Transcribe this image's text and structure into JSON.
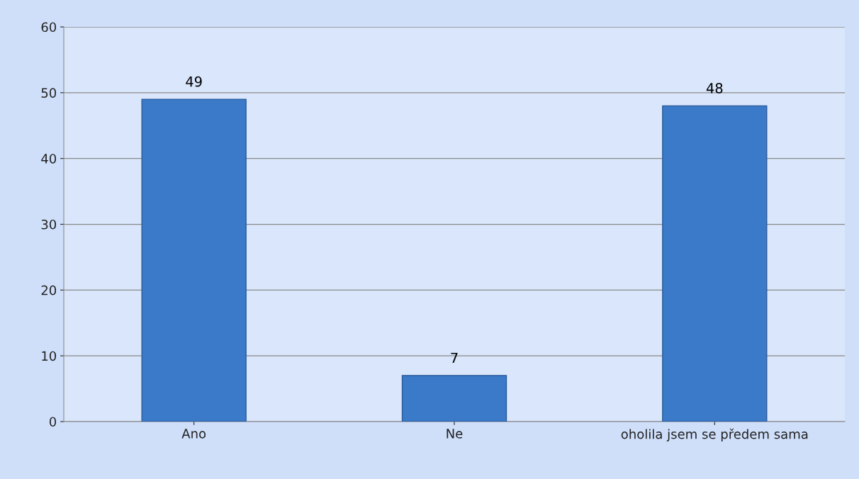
{
  "chart_data": {
    "type": "bar",
    "categories": [
      "Ano",
      "Ne",
      "oholila jsem se předem sama"
    ],
    "values": [
      49,
      7,
      48
    ],
    "color": "#3b7ac9",
    "ylim": [
      0,
      60
    ],
    "yticks": [
      0,
      10,
      20,
      30,
      40,
      50,
      60
    ],
    "grid": "y",
    "data_labels": true
  }
}
